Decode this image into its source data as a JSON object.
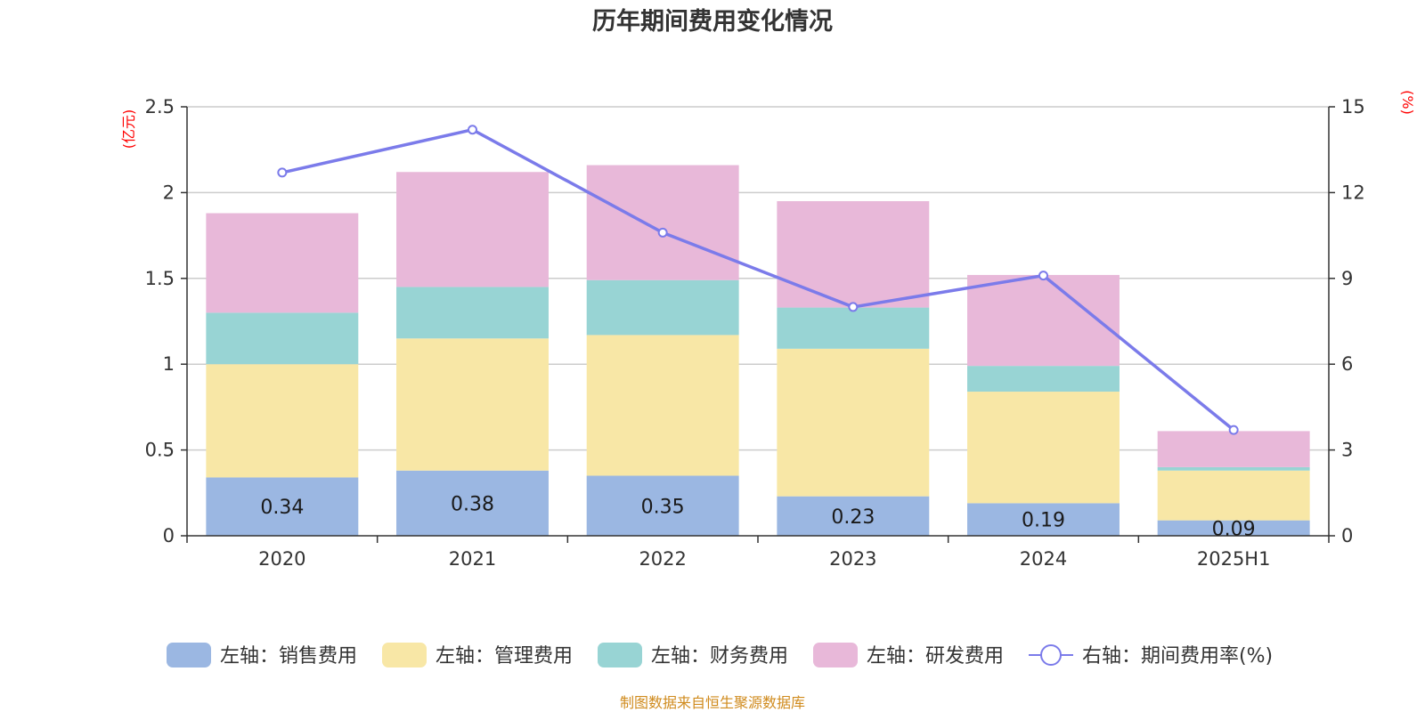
{
  "chart_data": {
    "type": "bar",
    "title": "历年期间费用变化情况",
    "categories": [
      "2020",
      "2021",
      "2022",
      "2023",
      "2024",
      "2025H1"
    ],
    "left_axis": {
      "unit": "(亿元)",
      "ylim": [
        0,
        2.5
      ],
      "ticks": [
        "0",
        "0.5",
        "1",
        "1.5",
        "2",
        "2.5"
      ],
      "tick_values": [
        0,
        0.5,
        1,
        1.5,
        2,
        2.5
      ]
    },
    "right_axis": {
      "unit": "(%)",
      "ylim": [
        0,
        15
      ],
      "ticks": [
        "0",
        "3",
        "6",
        "9",
        "12",
        "15"
      ],
      "tick_values": [
        0,
        3,
        6,
        9,
        12,
        15
      ]
    },
    "series": [
      {
        "name": "左轴：销售费用",
        "type": "bar",
        "color": "#9bb7e2",
        "values": [
          0.34,
          0.38,
          0.35,
          0.23,
          0.19,
          0.09
        ],
        "labels": [
          "0.34",
          "0.38",
          "0.35",
          "0.23",
          "0.19",
          "0.09"
        ]
      },
      {
        "name": "左轴：管理费用",
        "type": "bar",
        "color": "#f8e7a6",
        "values": [
          0.66,
          0.77,
          0.82,
          0.86,
          0.65,
          0.29
        ]
      },
      {
        "name": "左轴：财务费用",
        "type": "bar",
        "color": "#98d4d4",
        "values": [
          0.3,
          0.3,
          0.32,
          0.24,
          0.15,
          0.02
        ]
      },
      {
        "name": "左轴：研发费用",
        "type": "bar",
        "color": "#e8b8d9",
        "values": [
          0.58,
          0.67,
          0.67,
          0.62,
          0.53,
          0.21
        ]
      },
      {
        "name": "右轴：期间费用率(%)",
        "type": "line",
        "color": "#7b7bea",
        "values": [
          12.7,
          14.2,
          10.6,
          8.0,
          9.1,
          3.7
        ]
      }
    ],
    "legend_position": "bottom",
    "grid": true
  },
  "source_note": "制图数据来自恒生聚源数据库"
}
